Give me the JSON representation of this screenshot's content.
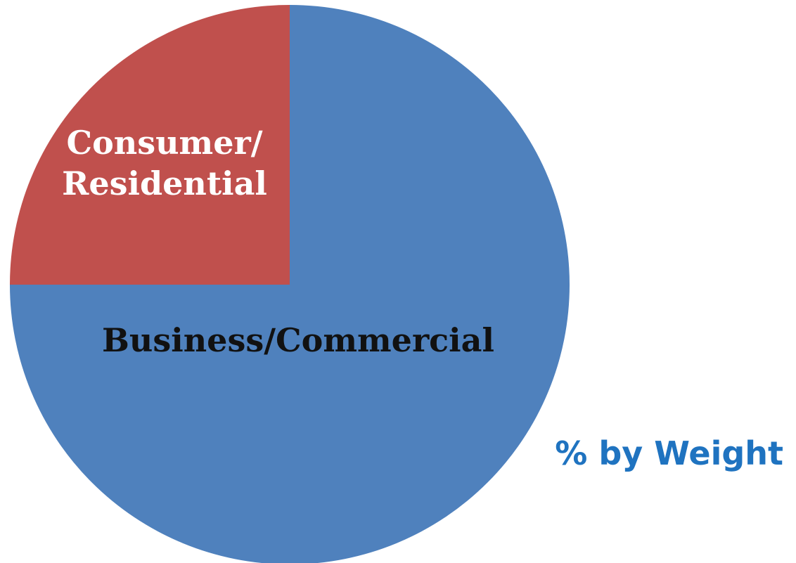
{
  "chart_data": {
    "type": "pie",
    "title": "",
    "categories": [
      "Business/Commercial",
      "Consumer/Residential"
    ],
    "values": [
      75,
      25
    ],
    "colors": [
      "#4f81bd",
      "#c0504d"
    ],
    "slice_labels": [
      {
        "text": "Business/Commercial",
        "color": "#111111"
      },
      {
        "text": "Consumer/\nResidential",
        "color": "#ffffff"
      }
    ],
    "start_angle_deg": 0,
    "direction": "clockwise"
  },
  "caption": {
    "text": "% by Weight",
    "color": "#1f73c0"
  }
}
